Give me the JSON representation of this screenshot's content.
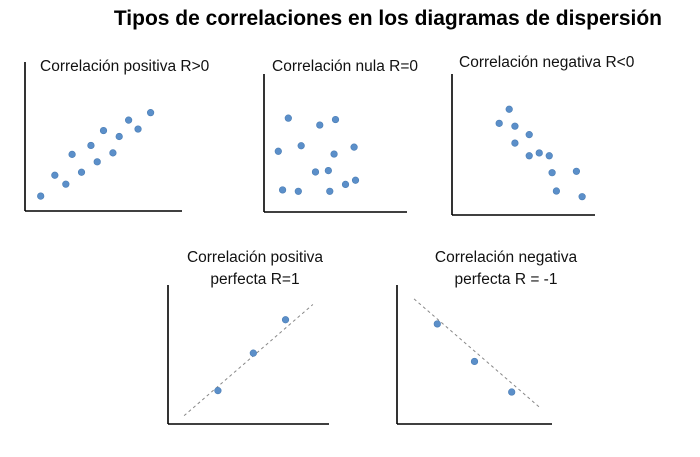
{
  "title": "Tipos de correlaciones en los diagramas de dispersión",
  "colors": {
    "point": "#5b8fc9",
    "axis": "#000000",
    "trend": "#888888"
  },
  "chart_data": [
    {
      "type": "scatter",
      "title": [
        "Correlación positiva  R>0"
      ],
      "xlim": [
        0,
        10
      ],
      "ylim": [
        0,
        10
      ],
      "points": [
        [
          1.0,
          1.0
        ],
        [
          1.9,
          2.4
        ],
        [
          2.6,
          1.8
        ],
        [
          3.0,
          3.8
        ],
        [
          3.6,
          2.6
        ],
        [
          4.2,
          4.4
        ],
        [
          4.6,
          3.3
        ],
        [
          5.0,
          5.4
        ],
        [
          5.6,
          3.9
        ],
        [
          6.0,
          5.0
        ],
        [
          6.6,
          6.1
        ],
        [
          7.2,
          5.5
        ],
        [
          8.0,
          6.6
        ]
      ],
      "trend": null
    },
    {
      "type": "scatter",
      "title": [
        "Correlación nula R=0"
      ],
      "xlim": [
        0,
        10
      ],
      "ylim": [
        0,
        10
      ],
      "points": [
        [
          1.0,
          4.4
        ],
        [
          1.7,
          6.8
        ],
        [
          1.3,
          1.6
        ],
        [
          2.4,
          1.5
        ],
        [
          2.6,
          4.8
        ],
        [
          3.6,
          2.9
        ],
        [
          3.9,
          6.3
        ],
        [
          4.5,
          3.0
        ],
        [
          4.6,
          1.5
        ],
        [
          4.9,
          4.2
        ],
        [
          5.0,
          6.7
        ],
        [
          5.7,
          2.0
        ],
        [
          6.3,
          4.7
        ],
        [
          6.4,
          2.3
        ]
      ],
      "trend": null
    },
    {
      "type": "scatter",
      "title": [
        "Correlación negativa R<0"
      ],
      "xlim": [
        0,
        10
      ],
      "ylim": [
        0,
        10
      ],
      "points": [
        [
          4.0,
          7.5
        ],
        [
          3.3,
          6.5
        ],
        [
          4.4,
          6.3
        ],
        [
          4.4,
          5.1
        ],
        [
          5.4,
          5.7
        ],
        [
          5.4,
          4.2
        ],
        [
          6.1,
          4.4
        ],
        [
          6.8,
          4.2
        ],
        [
          7.0,
          3.0
        ],
        [
          7.3,
          1.7
        ],
        [
          8.7,
          3.1
        ],
        [
          9.1,
          1.3
        ]
      ],
      "trend": null
    },
    {
      "type": "scatter",
      "title": [
        "Correlación positiva",
        "perfecta R=1"
      ],
      "xlim": [
        0,
        10
      ],
      "ylim": [
        0,
        10
      ],
      "points": [
        [
          3.1,
          2.4
        ],
        [
          5.3,
          5.1
        ],
        [
          7.3,
          7.5
        ]
      ],
      "trend": [
        [
          1.0,
          0.6
        ],
        [
          9.0,
          8.6
        ]
      ]
    },
    {
      "type": "scatter",
      "title": [
        "Correlación negativa",
        "perfecta R = -1"
      ],
      "xlim": [
        0,
        10
      ],
      "ylim": [
        0,
        10
      ],
      "points": [
        [
          2.6,
          7.2
        ],
        [
          5.0,
          4.5
        ],
        [
          7.4,
          2.3
        ]
      ],
      "trend": [
        [
          1.1,
          9.0
        ],
        [
          9.2,
          1.2
        ]
      ]
    }
  ]
}
